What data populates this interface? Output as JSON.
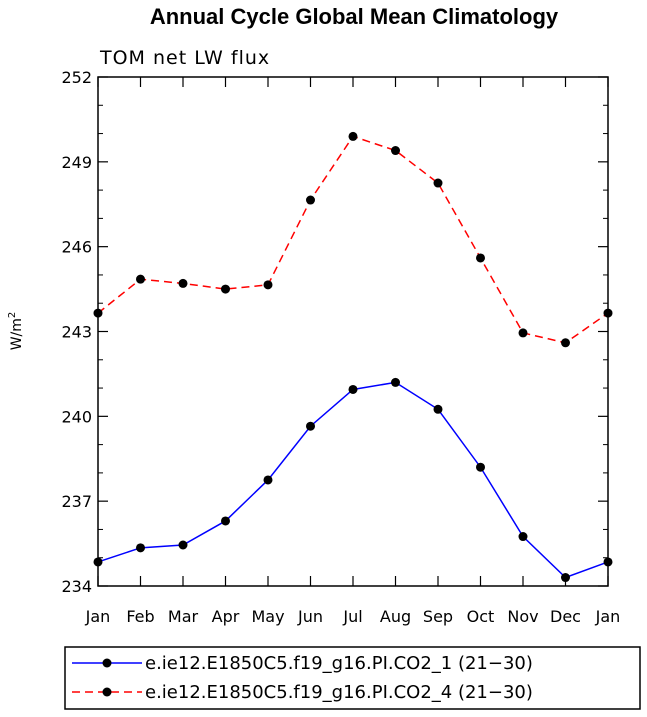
{
  "chart_data": {
    "type": "line",
    "title": "Annual Cycle Global Mean Climatology",
    "subtitle": "TOM net LW flux",
    "xlabel": "",
    "ylabel": "W/m",
    "ylabel_superscript": "2",
    "categories": [
      "Jan",
      "Feb",
      "Mar",
      "Apr",
      "May",
      "Jun",
      "Jul",
      "Aug",
      "Sep",
      "Oct",
      "Nov",
      "Dec",
      "Jan"
    ],
    "ylim": [
      234,
      252
    ],
    "yticks": [
      234,
      237,
      240,
      243,
      246,
      249,
      252
    ],
    "ytick_labels": [
      "234",
      "237",
      "240",
      "243",
      "246",
      "249",
      "252"
    ],
    "grid": false,
    "legend_position": "bottom",
    "series": [
      {
        "name": "e.ie12.E1850C5.f19_g16.PI.CO2_1 (21−30)",
        "color": "#0000ff",
        "line_style": "solid",
        "marker": "filled-circle",
        "values": [
          234.85,
          235.35,
          235.45,
          236.3,
          237.75,
          239.65,
          240.95,
          241.2,
          240.25,
          238.2,
          235.75,
          234.3,
          234.85
        ]
      },
      {
        "name": "e.ie12.E1850C5.f19_g16.PI.CO2_4 (21−30)",
        "color": "#ff0000",
        "line_style": "dashed",
        "marker": "filled-circle",
        "values": [
          243.65,
          244.85,
          244.7,
          244.5,
          244.65,
          247.65,
          249.9,
          249.4,
          248.25,
          245.6,
          242.95,
          242.6,
          243.65
        ]
      }
    ]
  }
}
